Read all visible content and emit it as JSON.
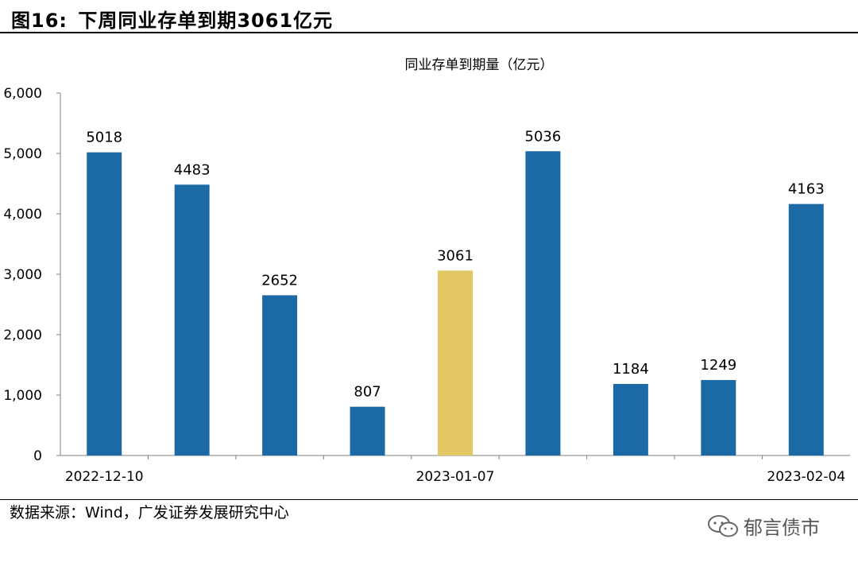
{
  "figure": {
    "label": "图16:",
    "title": "下周同业存单到期3061亿元"
  },
  "source_text": "数据来源：Wind，广发证券发展研究中心",
  "watermark": {
    "text": "郁言债市",
    "icon": "wechat-icon"
  },
  "colors": {
    "bar": "#1b6aa5",
    "highlight": "#e2c764",
    "axis": "#808080"
  },
  "chart_data": {
    "type": "bar",
    "title": "同业存单到期量（亿元）",
    "categories": [
      "2022-12-10",
      "",
      "",
      "",
      "2023-01-07",
      "",
      "",
      "",
      "2023-02-04"
    ],
    "tick_labels": [
      "2022-12-10",
      "2023-01-07",
      "2023-02-04"
    ],
    "values": [
      5018,
      4483,
      2652,
      807,
      3061,
      5036,
      1184,
      1249,
      4163
    ],
    "highlight_index": 4,
    "ylim": [
      0,
      6000
    ],
    "yticks": [
      "0",
      "1,000",
      "2,000",
      "3,000",
      "4,000",
      "5,000",
      "6,000"
    ],
    "xlabel": "",
    "ylabel": "",
    "grid": false,
    "legend": "none"
  }
}
